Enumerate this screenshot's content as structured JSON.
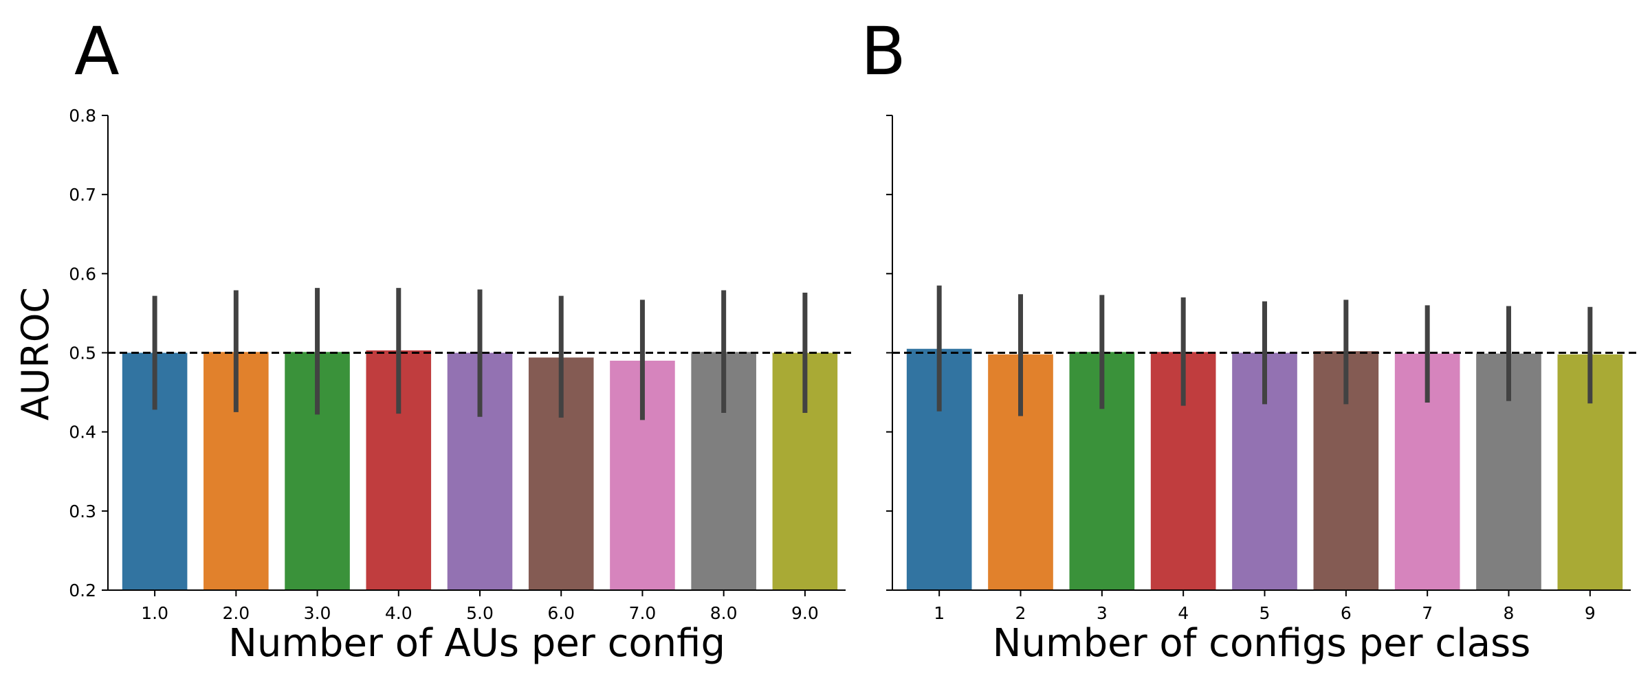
{
  "panels": {
    "a": {
      "letter": "A"
    },
    "b": {
      "letter": "B"
    }
  },
  "chart_data": [
    {
      "type": "bar",
      "panel": "A",
      "xlabel": "Number of AUs per config",
      "ylabel": "AUROC",
      "categories": [
        "1.0",
        "2.0",
        "3.0",
        "4.0",
        "5.0",
        "6.0",
        "7.0",
        "8.0",
        "9.0"
      ],
      "values": [
        0.5,
        0.501,
        0.501,
        0.503,
        0.5,
        0.494,
        0.49,
        0.501,
        0.5
      ],
      "error_low": [
        0.428,
        0.425,
        0.422,
        0.423,
        0.419,
        0.418,
        0.415,
        0.424,
        0.424
      ],
      "error_high": [
        0.572,
        0.579,
        0.582,
        0.582,
        0.58,
        0.572,
        0.567,
        0.579,
        0.576
      ],
      "ylim": [
        0.2,
        0.8
      ],
      "yticks": [
        "0.2",
        "0.3",
        "0.4",
        "0.5",
        "0.6",
        "0.7",
        "0.8"
      ],
      "reference_line": 0.5,
      "show_ytick_labels": true,
      "colors": [
        "#3274a1",
        "#e1812c",
        "#3a923a",
        "#c03d3e",
        "#9372b2",
        "#845b53",
        "#d684bd",
        "#7f7f7f",
        "#a9aa35"
      ],
      "errorbar_color": "#424242",
      "grid": false
    },
    {
      "type": "bar",
      "panel": "B",
      "xlabel": "Number of configs per class",
      "ylabel": "",
      "categories": [
        "1",
        "2",
        "3",
        "4",
        "5",
        "6",
        "7",
        "8",
        "9"
      ],
      "values": [
        0.505,
        0.498,
        0.501,
        0.501,
        0.5,
        0.502,
        0.499,
        0.499,
        0.498
      ],
      "error_low": [
        0.426,
        0.42,
        0.429,
        0.433,
        0.435,
        0.435,
        0.437,
        0.439,
        0.436
      ],
      "error_high": [
        0.585,
        0.574,
        0.573,
        0.57,
        0.565,
        0.567,
        0.56,
        0.559,
        0.558
      ],
      "ylim": [
        0.2,
        0.8
      ],
      "yticks": [
        "",
        "",
        "",
        "",
        "",
        "",
        ""
      ],
      "reference_line": 0.5,
      "show_ytick_labels": false,
      "colors": [
        "#3274a1",
        "#e1812c",
        "#3a923a",
        "#c03d3e",
        "#9372b2",
        "#845b53",
        "#d684bd",
        "#7f7f7f",
        "#a9aa35"
      ],
      "errorbar_color": "#424242",
      "grid": false
    }
  ]
}
